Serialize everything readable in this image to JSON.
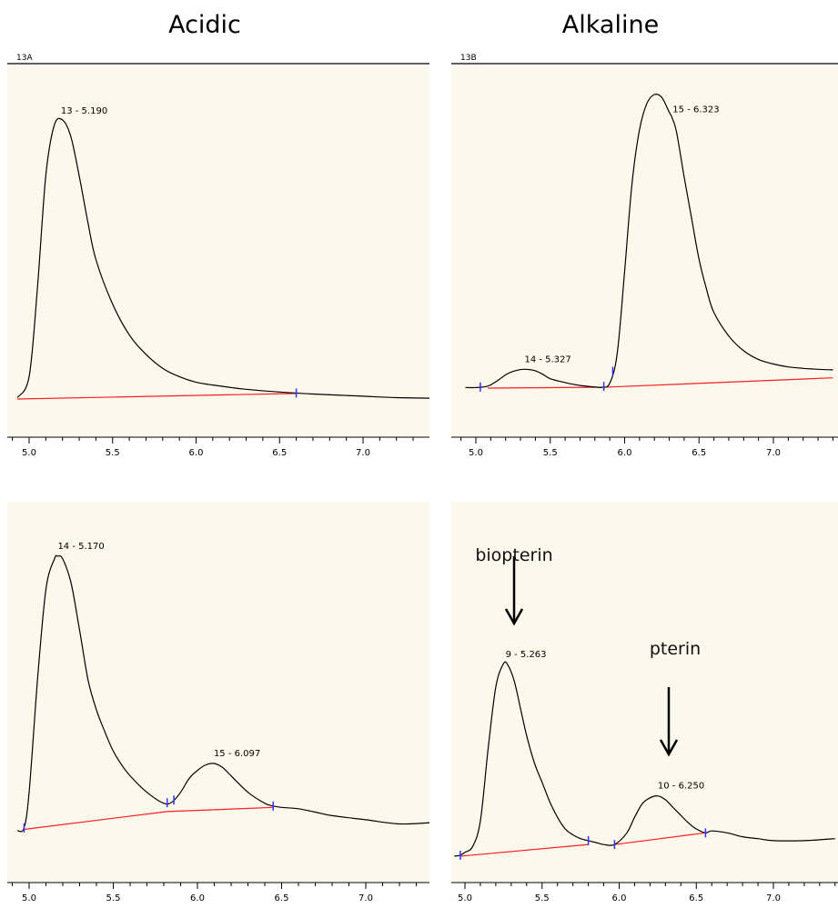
{
  "titles": {
    "left": "Acidic",
    "right": "Alkaline"
  },
  "annotations": {
    "biopterin": "biopterin",
    "pterin": "pterin"
  },
  "colors": {
    "background": "#fdf8ec",
    "trace": "#000000",
    "baseline": "#ff2020",
    "marker": "#3333ff"
  },
  "chart_data": [
    {
      "type": "line",
      "panel_title": "13A",
      "x_range": [
        4.93,
        7.4
      ],
      "x_ticks": [
        "5.0",
        "5.5",
        "6.0",
        "6.5",
        "7.0"
      ],
      "y_range": [
        0,
        100
      ],
      "grid": false,
      "series": [
        {
          "x": [
            4.93,
            5.0,
            5.05,
            5.1,
            5.15,
            5.2,
            5.25,
            5.3,
            5.35,
            5.4,
            5.5,
            5.6,
            5.7,
            5.8,
            5.9,
            6.0,
            6.1,
            6.3,
            6.5,
            6.7,
            7.0,
            7.2,
            7.4
          ],
          "y": [
            0.5,
            8,
            40,
            80,
            98,
            100,
            94,
            80,
            64,
            50,
            34,
            23,
            16,
            11,
            8,
            6,
            5,
            3.5,
            2.5,
            1.8,
            1,
            0.5,
            0.3
          ]
        }
      ],
      "peaks": [
        {
          "label": "13 - 5.190",
          "rt": 5.19
        }
      ],
      "integration_baselines": [
        {
          "x": [
            4.93,
            6.6
          ],
          "y": [
            0,
            2
          ]
        }
      ],
      "markers": [
        6.6
      ]
    },
    {
      "type": "line",
      "panel_title": "13B",
      "x_range": [
        4.93,
        7.4
      ],
      "x_ticks": [
        "5.0",
        "5.5",
        "6.0",
        "6.5",
        "7.0"
      ],
      "y_range": [
        0,
        100
      ],
      "grid": false,
      "series": [
        {
          "x": [
            4.93,
            5.0,
            5.08,
            5.15,
            5.2,
            5.25,
            5.3,
            5.33,
            5.36,
            5.4,
            5.45,
            5.5,
            5.6,
            5.7,
            5.8,
            5.85,
            5.9,
            5.95,
            6.0,
            6.05,
            6.1,
            6.15,
            6.2,
            6.25,
            6.3,
            6.32,
            6.35,
            6.4,
            6.45,
            6.5,
            6.55,
            6.6,
            6.7,
            6.8,
            6.9,
            7.0,
            7.1,
            7.2,
            7.3,
            7.4
          ],
          "y": [
            0.5,
            0.5,
            1,
            3,
            4.8,
            6,
            6.6,
            6.7,
            6.6,
            6.2,
            5,
            3.5,
            2.2,
            1.2,
            0.7,
            0.6,
            2,
            12,
            40,
            70,
            88,
            97,
            100,
            99,
            94,
            92,
            87,
            72,
            58,
            44,
            34,
            26,
            18,
            13,
            10,
            8.5,
            7.5,
            7,
            6.7,
            6.5
          ]
        }
      ],
      "peaks": [
        {
          "label": "14 - 5.327",
          "rt": 5.327
        },
        {
          "label": "15 - 6.323",
          "rt": 6.323
        }
      ],
      "integration_baselines": [
        {
          "x": [
            5.08,
            5.86
          ],
          "y": [
            0.3,
            0.6
          ]
        },
        {
          "x": [
            5.86,
            7.4
          ],
          "y": [
            0.6,
            3.8
          ]
        }
      ],
      "markers": [
        5.03,
        5.86,
        5.92
      ]
    },
    {
      "type": "line",
      "panel_title": "",
      "x_range": [
        4.93,
        7.4
      ],
      "x_ticks": [
        "5.0",
        "5.5",
        "6.0",
        "6.5",
        "7.0"
      ],
      "y_range": [
        0,
        100
      ],
      "grid": false,
      "series": [
        {
          "x": [
            4.93,
            4.97,
            5.0,
            5.05,
            5.1,
            5.15,
            5.17,
            5.2,
            5.25,
            5.3,
            5.35,
            5.4,
            5.45,
            5.5,
            5.55,
            5.6,
            5.7,
            5.8,
            5.85,
            5.9,
            5.95,
            6.0,
            6.05,
            6.1,
            6.15,
            6.2,
            6.3,
            6.4,
            6.45,
            6.5,
            6.6,
            6.7,
            6.8,
            7.0,
            7.2,
            7.4
          ],
          "y": [
            0,
            1,
            14,
            55,
            88,
            99,
            100,
            99,
            90,
            73,
            55,
            44,
            36,
            29,
            24,
            20,
            14,
            10,
            10.5,
            14,
            19,
            22,
            24,
            24.5,
            23,
            20,
            14,
            10,
            9,
            8.5,
            8,
            6.8,
            5.5,
            4,
            2.5,
            3
          ]
        }
      ],
      "peaks": [
        {
          "label": "14 - 5.170",
          "rt": 5.17
        },
        {
          "label": "15 - 6.097",
          "rt": 6.097
        }
      ],
      "integration_baselines": [
        {
          "x": [
            4.97,
            5.82
          ],
          "y": [
            0.5,
            7
          ]
        },
        {
          "x": [
            5.82,
            6.45
          ],
          "y": [
            7,
            8.5
          ]
        }
      ],
      "markers": [
        4.97,
        5.82,
        5.86,
        6.45
      ]
    },
    {
      "type": "line",
      "panel_title": "",
      "x_range": [
        4.93,
        7.4
      ],
      "x_ticks": [
        "5.0",
        "5.5",
        "6.0",
        "6.5",
        "7.0"
      ],
      "y_range": [
        0,
        100
      ],
      "grid": false,
      "series": [
        {
          "x": [
            4.93,
            4.97,
            5.0,
            5.05,
            5.1,
            5.15,
            5.2,
            5.25,
            5.28,
            5.32,
            5.36,
            5.4,
            5.45,
            5.5,
            5.55,
            5.6,
            5.65,
            5.7,
            5.75,
            5.8,
            5.85,
            5.9,
            5.97,
            6.05,
            6.1,
            6.15,
            6.2,
            6.25,
            6.3,
            6.35,
            6.4,
            6.45,
            6.5,
            6.56,
            6.6,
            6.7,
            6.8,
            6.9,
            7.0,
            7.2,
            7.4
          ],
          "y": [
            0,
            0.5,
            2,
            5,
            18,
            55,
            87,
            99,
            98,
            90,
            76,
            62,
            48,
            38,
            28,
            20,
            14,
            11,
            9,
            8,
            7,
            6,
            6,
            12,
            20,
            27,
            30,
            31,
            29,
            25,
            21,
            17,
            14,
            12,
            13,
            12,
            10,
            9,
            8,
            8,
            9
          ]
        }
      ],
      "peaks": [
        {
          "label": "9 - 5.263",
          "rt": 5.263
        },
        {
          "label": "10 - 6.250",
          "rt": 6.25
        }
      ],
      "integration_baselines": [
        {
          "x": [
            4.97,
            5.8
          ],
          "y": [
            0,
            6
          ]
        },
        {
          "x": [
            5.97,
            6.56
          ],
          "y": [
            6,
            12
          ]
        }
      ],
      "markers": [
        4.97,
        5.8,
        5.97,
        6.56
      ]
    }
  ]
}
